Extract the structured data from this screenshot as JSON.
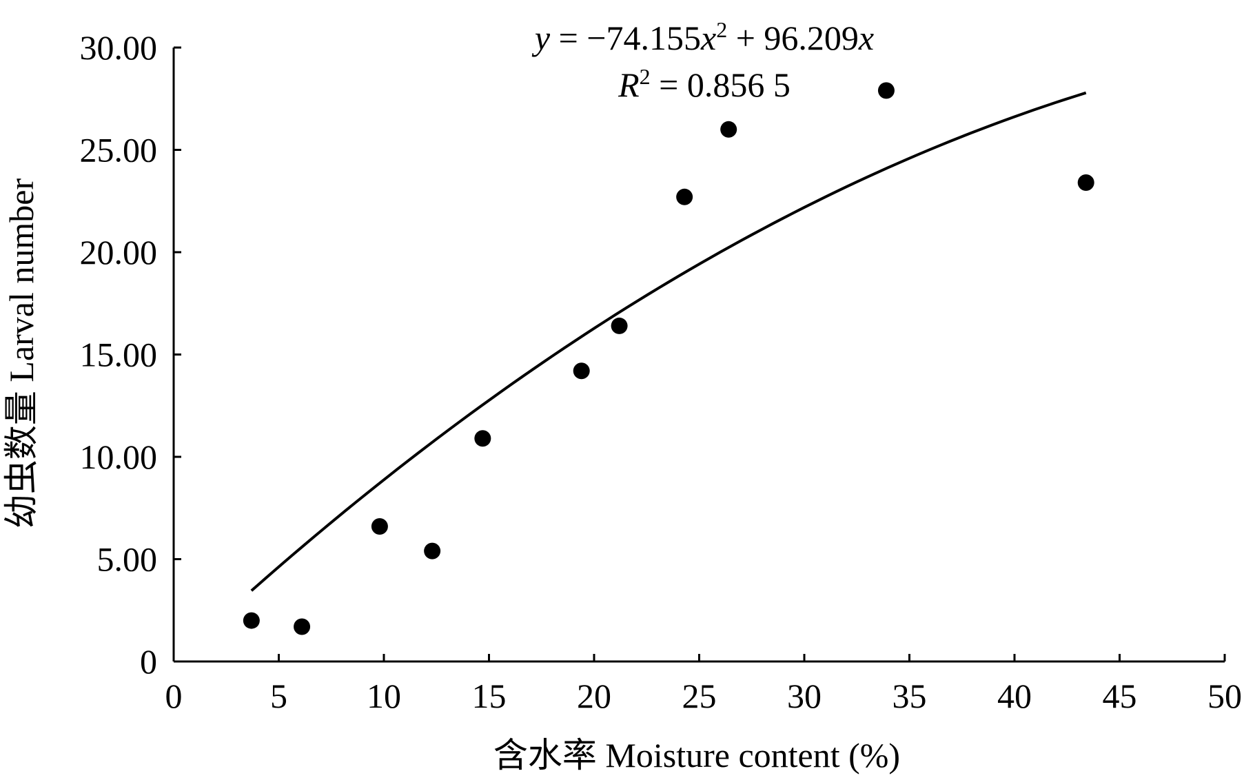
{
  "chart_data": {
    "type": "scatter",
    "title": "",
    "xlabel": "含水率  Moisture content (%)",
    "ylabel": "幼虫数量  Larval number",
    "xlim": [
      0,
      50
    ],
    "ylim": [
      0,
      30
    ],
    "x_ticks": [
      0,
      5,
      10,
      15,
      20,
      25,
      30,
      35,
      40,
      45,
      50
    ],
    "x_tick_labels": [
      "0",
      "5",
      "10",
      "15",
      "20",
      "25",
      "30",
      "35",
      "40",
      "45",
      "50"
    ],
    "y_ticks": [
      0,
      5,
      10,
      15,
      20,
      25,
      30
    ],
    "y_tick_labels": [
      "0",
      "5.00",
      "10.00",
      "15.00",
      "20.00",
      "25.00",
      "30.00"
    ],
    "grid": false,
    "legend": "none",
    "points": {
      "x": [
        3.7,
        6.1,
        9.8,
        12.3,
        14.7,
        19.4,
        21.2,
        24.3,
        26.4,
        33.9,
        43.4
      ],
      "y": [
        2.0,
        1.7,
        6.6,
        5.4,
        10.9,
        14.2,
        16.4,
        22.7,
        26.0,
        27.9,
        23.4
      ]
    },
    "trendline": {
      "type": "polynomial",
      "a": -74.155,
      "b": 96.209,
      "x_unit_divisor": 100,
      "x_range": [
        3.7,
        43.4
      ],
      "equation": {
        "y_var": "y",
        "eq_part1": " = −74.155",
        "x_var1": "x",
        "sup1": "2",
        "eq_part2": " + 96.209",
        "x_var2": "x"
      },
      "r2": {
        "r_var": "R",
        "sup": "2",
        "value": " = 0.856 5"
      }
    },
    "colors": {
      "points": "#000000",
      "line": "#000000",
      "axis": "#000000"
    }
  }
}
